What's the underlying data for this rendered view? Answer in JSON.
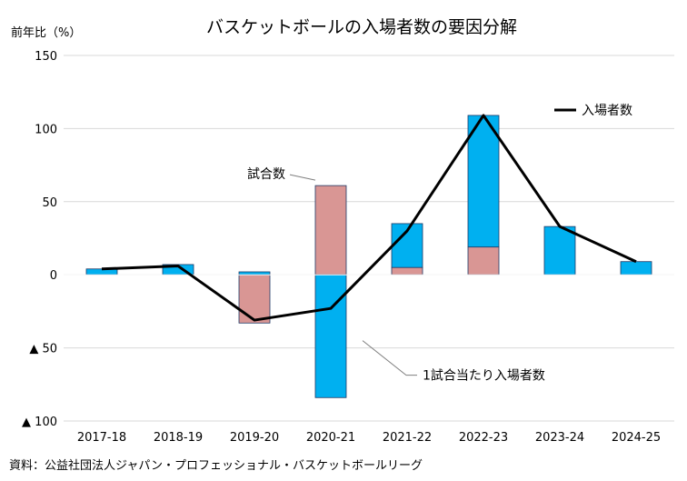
{
  "chart_data": {
    "type": "bar",
    "title": "バスケットボールの入場者数の要因分解",
    "ylabel": "前年比（%）",
    "ylim": [
      -100,
      150
    ],
    "yticks": [
      {
        "value": 150,
        "label": "150"
      },
      {
        "value": 100,
        "label": "100"
      },
      {
        "value": 50,
        "label": "50"
      },
      {
        "value": 0,
        "label": "0"
      },
      {
        "value": -50,
        "label": "▲ 50"
      },
      {
        "value": -100,
        "label": "▲ 100"
      }
    ],
    "grid": true,
    "stacked": true,
    "categories": [
      "2017-18",
      "2018-19",
      "2019-20",
      "2020-21",
      "2021-22",
      "2022-23",
      "2023-24",
      "2024-25"
    ],
    "series": [
      {
        "name": "試合数",
        "kind": "bar",
        "color": "#d99694",
        "values": [
          0,
          0,
          -33,
          61,
          5,
          19,
          0,
          0
        ]
      },
      {
        "name": "1試合当たり入場者数",
        "kind": "bar",
        "color": "#00b0f0",
        "values": [
          4,
          7,
          2,
          -84,
          30,
          90,
          33,
          9
        ]
      },
      {
        "name": "入場者数",
        "kind": "line",
        "color": "#000000",
        "values": [
          4,
          6,
          -31,
          -23,
          30,
          109,
          33,
          9
        ]
      }
    ],
    "annotations": [
      {
        "text": "試合数",
        "category": "2020-21",
        "series": "試合数"
      },
      {
        "text": "1試合当たり入場者数",
        "category": "2020-21",
        "series": "1試合当たり入場者数"
      }
    ],
    "legend": {
      "position": "top-right",
      "entries": [
        "入場者数"
      ]
    },
    "source": "資料：公益社団法人ジャパン・プロフェッショナル・バスケットボールリーグ"
  }
}
